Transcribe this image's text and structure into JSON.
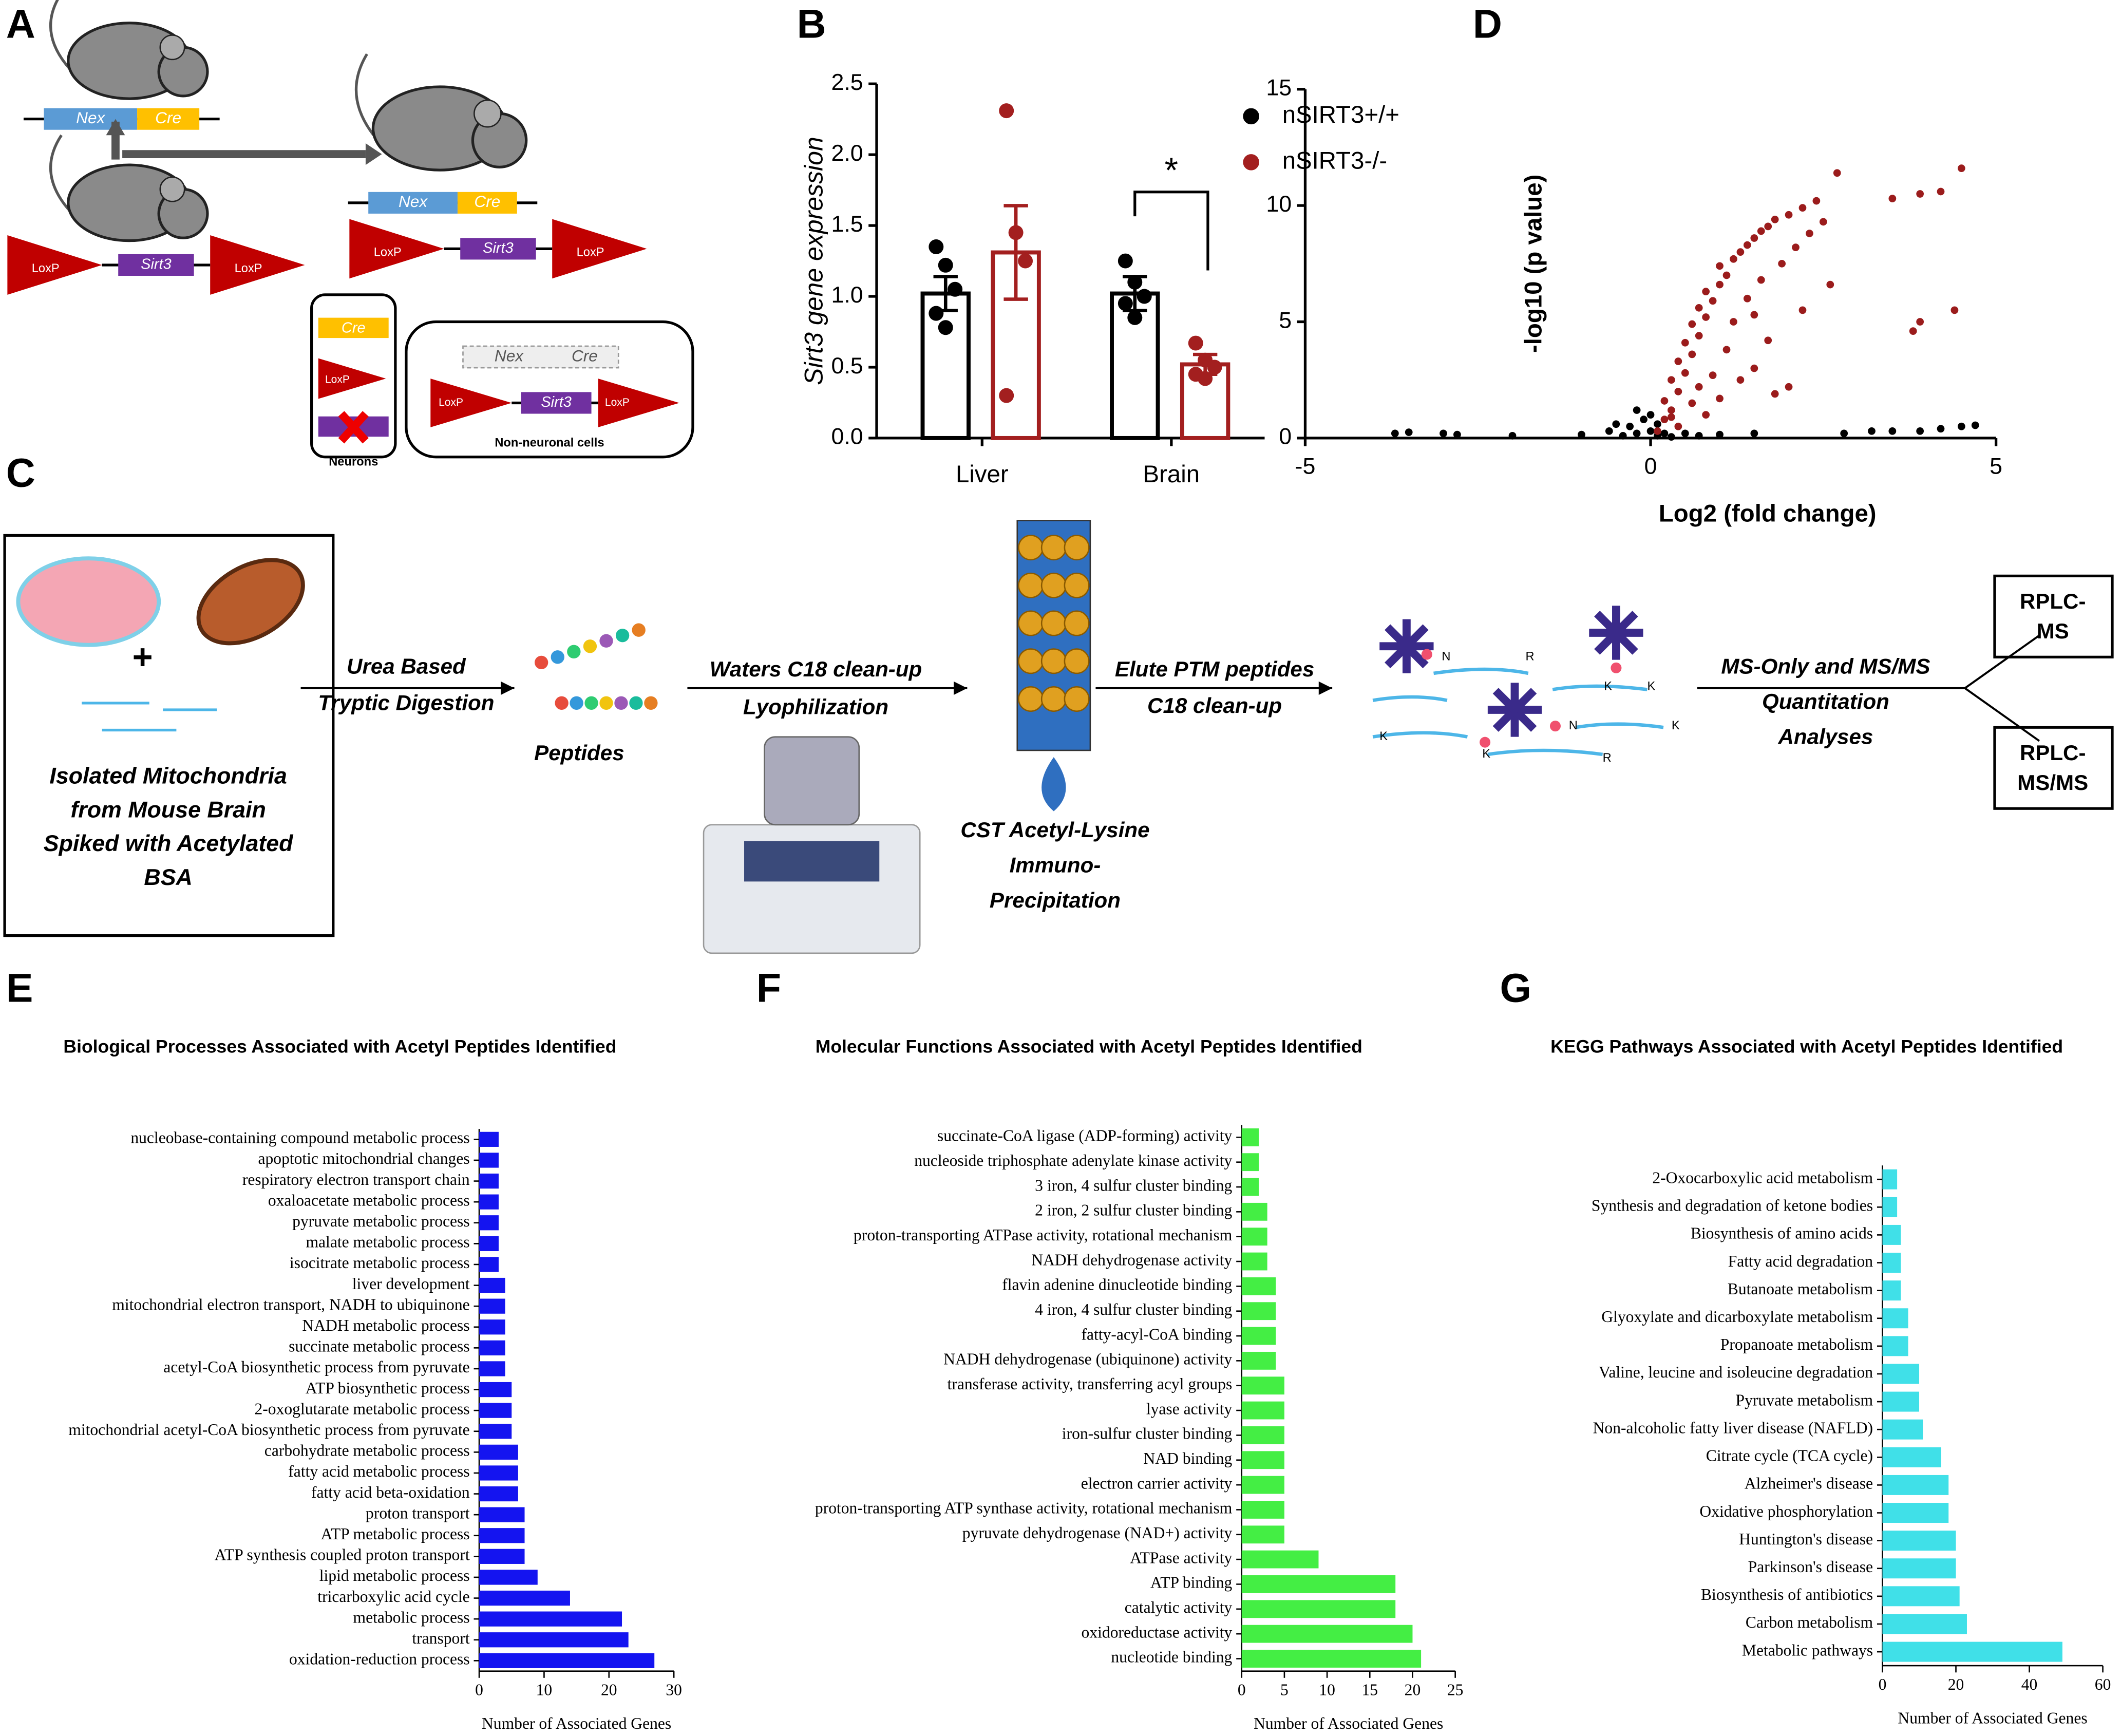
{
  "panel_labels": [
    "A",
    "B",
    "C",
    "D",
    "E",
    "F",
    "G"
  ],
  "diagram_a": {
    "nex": "Nex",
    "cre": "Cre",
    "loxp": "LoxP",
    "sirt3": "Sirt3",
    "neurons": "Neurons",
    "non_neuronal": "Non-neuronal cells"
  },
  "workflow_c": {
    "plus": "+",
    "input": [
      "Isolated Mitochondria",
      "from Mouse Brain",
      "Spiked with Acetylated",
      "BSA"
    ],
    "step1": [
      "Urea Based",
      "Tryptic Digestion"
    ],
    "peptides": "Peptides",
    "step2": [
      "Waters C18 clean-up",
      "Lyophilization"
    ],
    "ip": [
      "CST Acetyl-Lysine",
      "Immuno-",
      "Precipitation"
    ],
    "step3": [
      "Elute PTM peptides",
      "C18 clean-up"
    ],
    "residues": {
      "n": "N",
      "r": "R",
      "k": "K"
    },
    "step4": [
      "MS-Only and MS/MS",
      "Quantitation",
      "Analyses"
    ],
    "out1": [
      "RPLC-",
      "MS"
    ],
    "out2": [
      "RPLC-",
      "MS/MS"
    ]
  },
  "chart_data": [
    {
      "type": "grouped-bar",
      "y_label": "Sirt3 gene expression",
      "categories": [
        "Liver",
        "Brain"
      ],
      "ylim": [
        0,
        2.5
      ],
      "yticks": [
        {
          "value": 0,
          "label": "0.0"
        },
        {
          "value": 0.5,
          "label": "0.5"
        },
        {
          "value": 1,
          "label": "1.0"
        },
        {
          "value": 1.5,
          "label": "1.5"
        },
        {
          "value": 2,
          "label": "2.0"
        },
        {
          "value": 2.5,
          "label": "2.5"
        }
      ],
      "series": [
        {
          "name": "nSIRT3+/+",
          "color": "#000000",
          "values": [
            1.02,
            1.02
          ],
          "errors": [
            0.12,
            0.12
          ],
          "points": [
            [
              1.35,
              1.22,
              1.05,
              0.88,
              0.78
            ],
            [
              1.25,
              1.1,
              1.0,
              0.95,
              0.85
            ]
          ]
        },
        {
          "name": "nSIRT3-/-",
          "color": "#a31f1f",
          "values": [
            1.31,
            0.52
          ],
          "errors": [
            0.33,
            0.07
          ],
          "points": [
            [
              2.31,
              1.45,
              1.25,
              0.3
            ],
            [
              0.67,
              0.55,
              0.5,
              0.45,
              0.42
            ]
          ]
        }
      ],
      "significance": "*"
    },
    {
      "type": "scatter",
      "x_label": "Log2 (fold change)",
      "y_label": "-log10 (p value)",
      "xlim": [
        -5,
        5
      ],
      "xticks": [
        -5,
        0,
        5
      ],
      "ylim": [
        0,
        15
      ],
      "yticks": [
        0,
        5,
        10,
        15
      ],
      "series": [
        {
          "color": "#000000",
          "x": [
            -3.7,
            -3.5,
            -3.0,
            -2.8,
            -2.0,
            -1.0,
            -0.6,
            -0.4,
            -0.3,
            -0.2,
            -0.1,
            0,
            0,
            0.1,
            0.1,
            0.2,
            0.3,
            0.5,
            0.7,
            1.0,
            1.5,
            -0.5,
            -0.2,
            2.8,
            3.2,
            3.5,
            3.9,
            4.2,
            4.5,
            4.7
          ],
          "y": [
            0.2,
            0.25,
            0.2,
            0.15,
            0.1,
            0.15,
            0.3,
            0.1,
            0.5,
            0.2,
            0.8,
            0.3,
            1.0,
            0.1,
            0.6,
            0.2,
            0.05,
            0.2,
            0.1,
            0.15,
            0.2,
            0.6,
            1.2,
            0.2,
            0.3,
            0.3,
            0.3,
            0.4,
            0.5,
            0.55
          ]
        },
        {
          "color": "#9b1c1c",
          "x": [
            0.1,
            0.2,
            0.3,
            0.2,
            0.4,
            0.3,
            0.5,
            0.4,
            0.6,
            0.5,
            0.7,
            0.6,
            0.8,
            0.7,
            0.9,
            0.8,
            1.0,
            1.1,
            1.0,
            1.2,
            1.3,
            1.4,
            1.5,
            1.6,
            1.7,
            1.8,
            2.0,
            2.2,
            2.4,
            2.7,
            3.5,
            3.9,
            4.2,
            4.5,
            4.4,
            3.9,
            3.8,
            1.8,
            2.0,
            1.5,
            1.3,
            1.1,
            0.9,
            0.4,
            0.6,
            0.8,
            1.0,
            1.2,
            1.4,
            1.6,
            1.9,
            2.1,
            2.3,
            2.5,
            1.5,
            0.3,
            1.7,
            2.2,
            2.6,
            0.7
          ],
          "y": [
            0.3,
            0.8,
            1.2,
            1.6,
            2.0,
            2.5,
            2.8,
            3.3,
            3.6,
            4.1,
            4.4,
            4.9,
            5.2,
            5.6,
            5.9,
            6.3,
            6.6,
            7.0,
            7.4,
            7.7,
            8.0,
            8.3,
            8.6,
            8.9,
            9.1,
            9.4,
            9.6,
            9.9,
            10.2,
            11.4,
            10.3,
            10.5,
            10.6,
            11.6,
            5.5,
            5.0,
            4.6,
            1.9,
            2.2,
            3.0,
            2.5,
            3.8,
            2.7,
            0.5,
            1.5,
            1.0,
            1.7,
            5.0,
            6.0,
            6.8,
            7.5,
            8.2,
            8.8,
            9.3,
            5.3,
            0.9,
            4.2,
            5.5,
            6.6,
            2.2
          ]
        }
      ]
    },
    {
      "type": "hbar",
      "title": "Biological Processes Associated with Acetyl Peptides Identified",
      "x_label": "Number of Associated Genes",
      "color": "#1414f0",
      "xlim": [
        0,
        30
      ],
      "xticks": [
        0,
        10,
        20,
        30
      ],
      "categories": [
        "nucleobase-containing compound metabolic process",
        "apoptotic mitochondrial changes",
        "respiratory electron transport chain",
        "oxaloacetate metabolic process",
        "pyruvate metabolic process",
        "malate metabolic process",
        "isocitrate metabolic process",
        "liver development",
        "mitochondrial electron transport, NADH to ubiquinone",
        "NADH metabolic process",
        "succinate metabolic process",
        "acetyl-CoA biosynthetic process from pyruvate",
        "ATP biosynthetic process",
        "2-oxoglutarate metabolic process",
        "mitochondrial acetyl-CoA biosynthetic process from pyruvate",
        "carbohydrate metabolic process",
        "fatty acid metabolic process",
        "fatty acid beta-oxidation",
        "proton transport",
        "ATP metabolic process",
        "ATP synthesis coupled proton transport",
        "lipid metabolic process",
        "tricarboxylic acid cycle",
        "metabolic process",
        "transport",
        "oxidation-reduction process"
      ],
      "values": [
        3,
        3,
        3,
        3,
        3,
        3,
        3,
        4,
        4,
        4,
        4,
        4,
        5,
        5,
        5,
        6,
        6,
        6,
        7,
        7,
        7,
        9,
        14,
        22,
        23,
        27
      ]
    },
    {
      "type": "hbar",
      "title": "Molecular Functions Associated with Acetyl Peptides Identified",
      "x_label": "Number of Associated Genes",
      "color": "#44ee44",
      "xlim": [
        0,
        25
      ],
      "xticks": [
        0,
        5,
        10,
        15,
        20,
        25
      ],
      "categories": [
        "succinate-CoA ligase (ADP-forming) activity",
        "nucleoside triphosphate adenylate kinase activity",
        "3 iron, 4 sulfur cluster binding",
        "2 iron, 2 sulfur cluster binding",
        "proton-transporting ATPase activity, rotational mechanism",
        "NADH dehydrogenase activity",
        "flavin adenine dinucleotide binding",
        "4 iron, 4 sulfur cluster binding",
        "fatty-acyl-CoA binding",
        "NADH dehydrogenase (ubiquinone) activity",
        "transferase activity, transferring acyl groups",
        "lyase activity",
        "iron-sulfur cluster binding",
        "NAD binding",
        "electron carrier activity",
        "proton-transporting ATP synthase activity, rotational mechanism",
        "pyruvate dehydrogenase (NAD+) activity",
        "ATPase activity",
        "ATP binding",
        "catalytic activity",
        "oxidoreductase activity",
        "nucleotide binding"
      ],
      "values": [
        2,
        2,
        2,
        3,
        3,
        3,
        4,
        4,
        4,
        4,
        5,
        5,
        5,
        5,
        5,
        5,
        5,
        9,
        18,
        18,
        20,
        21
      ]
    },
    {
      "type": "hbar",
      "title": "KEGG Pathways Associated with Acetyl Peptides Identified",
      "x_label": "Number of Associated Genes",
      "color": "#40e0e8",
      "xlim": [
        0,
        60
      ],
      "xticks": [
        0,
        20,
        40,
        60
      ],
      "categories": [
        "2-Oxocarboxylic acid metabolism",
        "Synthesis and degradation of ketone bodies",
        "Biosynthesis of amino acids",
        "Fatty acid degradation",
        "Butanoate metabolism",
        "Glyoxylate and dicarboxylate metabolism",
        "Propanoate metabolism",
        "Valine, leucine and isoleucine degradation",
        "Pyruvate metabolism",
        "Non-alcoholic fatty liver disease (NAFLD)",
        "Citrate cycle (TCA cycle)",
        "Alzheimer's disease",
        "Oxidative phosphorylation",
        "Huntington's disease",
        "Parkinson's disease",
        "Biosynthesis of antibiotics",
        "Carbon metabolism",
        "Metabolic pathways"
      ],
      "values": [
        4,
        4,
        5,
        5,
        5,
        7,
        7,
        10,
        10,
        11,
        16,
        18,
        18,
        20,
        20,
        21,
        23,
        49
      ]
    }
  ]
}
